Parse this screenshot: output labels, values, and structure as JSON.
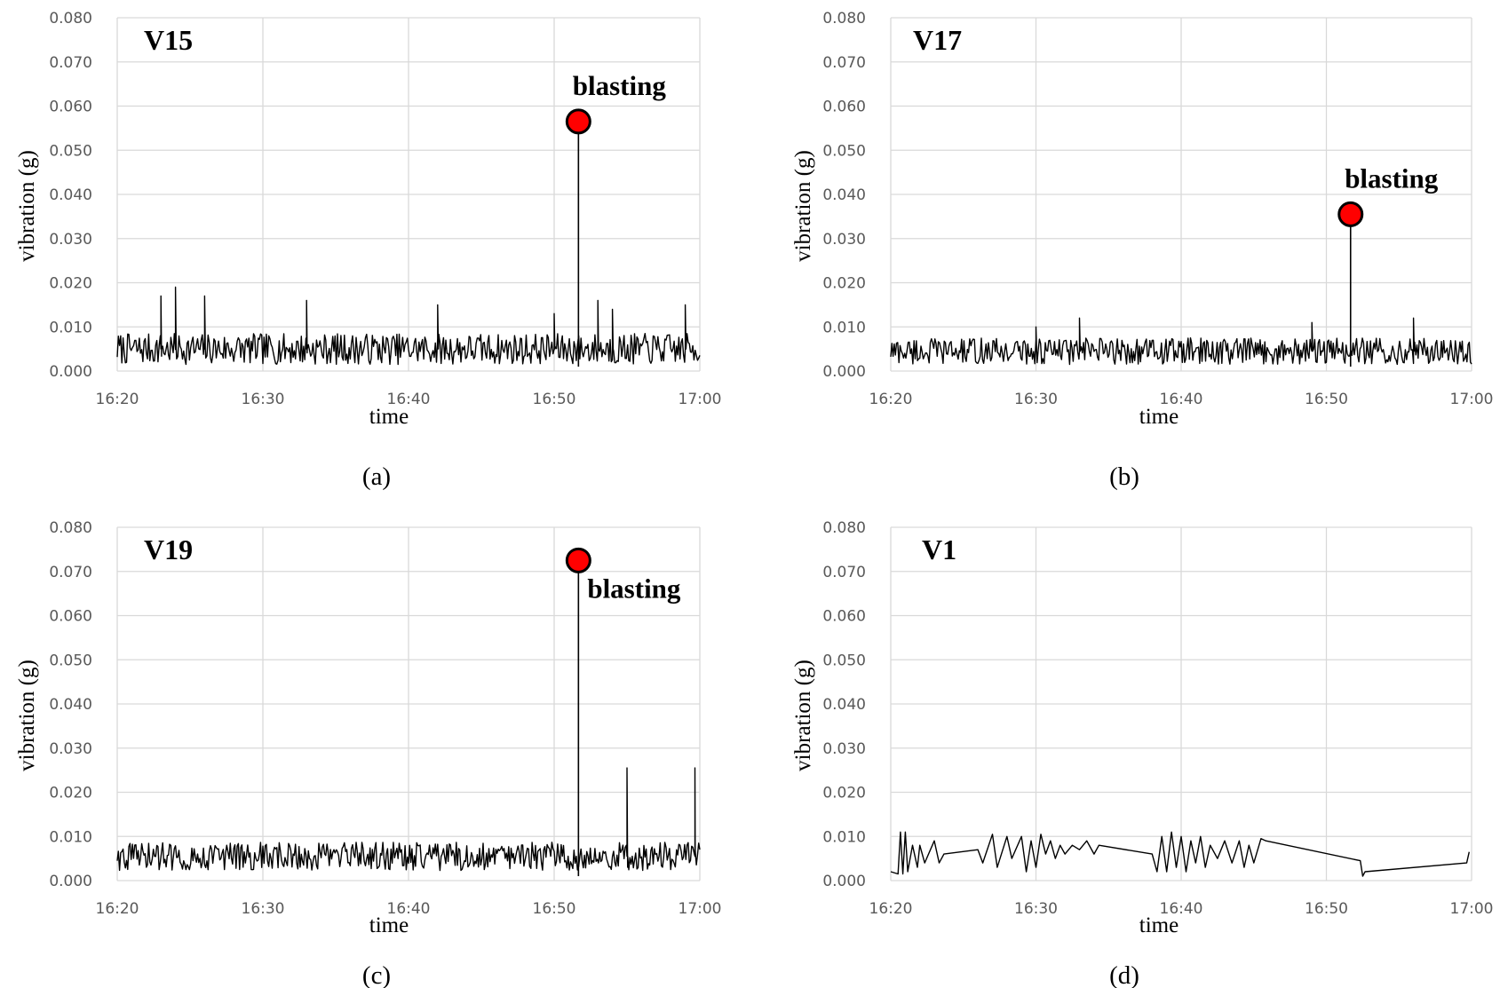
{
  "chart_data": [
    {
      "panel": "a",
      "type": "line",
      "title": "V15",
      "caption": "(a)",
      "xlabel": "time",
      "ylabel": "vibration (g)",
      "x_ticks": [
        "16:20",
        "16:30",
        "16:40",
        "16:50",
        "17:00"
      ],
      "xlim": [
        "16:20",
        "17:00"
      ],
      "y_ticks": [
        "0.000",
        "0.010",
        "0.020",
        "0.030",
        "0.040",
        "0.050",
        "0.060",
        "0.070",
        "0.080"
      ],
      "ylim": [
        0,
        0.08
      ],
      "grid": true,
      "noise": {
        "baseline": 0.005,
        "amplitude": 0.0035,
        "samples": 500
      },
      "spikes": [
        {
          "time": "16:23",
          "value": 0.017
        },
        {
          "time": "16:24",
          "value": 0.019
        },
        {
          "time": "16:26",
          "value": 0.017
        },
        {
          "time": "16:33",
          "value": 0.016
        },
        {
          "time": "16:42",
          "value": 0.015
        },
        {
          "time": "16:50",
          "value": 0.013
        },
        {
          "time": "16:53",
          "value": 0.016
        },
        {
          "time": "16:54",
          "value": 0.014
        },
        {
          "time": "16:59",
          "value": 0.015
        }
      ],
      "series": [
        {
          "values": []
        }
      ],
      "annotation": {
        "label": "blasting",
        "time": "16:51:40",
        "value": 0.0565,
        "label_side": "top"
      }
    },
    {
      "panel": "b",
      "type": "line",
      "title": "V17",
      "caption": "(b)",
      "xlabel": "time",
      "ylabel": "vibration (g)",
      "x_ticks": [
        "16:20",
        "16:30",
        "16:40",
        "16:50",
        "17:00"
      ],
      "xlim": [
        "16:20",
        "17:00"
      ],
      "y_ticks": [
        "0.000",
        "0.010",
        "0.020",
        "0.030",
        "0.040",
        "0.050",
        "0.060",
        "0.070",
        "0.080"
      ],
      "ylim": [
        0,
        0.08
      ],
      "grid": true,
      "noise": {
        "baseline": 0.0045,
        "amplitude": 0.003,
        "samples": 500
      },
      "spikes": [
        {
          "time": "16:30",
          "value": 0.01
        },
        {
          "time": "16:33",
          "value": 0.012
        },
        {
          "time": "16:49",
          "value": 0.011
        },
        {
          "time": "16:56",
          "value": 0.012
        }
      ],
      "series": [
        {
          "values": []
        }
      ],
      "annotation": {
        "label": "blasting",
        "time": "16:51:40",
        "value": 0.0355,
        "label_side": "top"
      }
    },
    {
      "panel": "c",
      "type": "line",
      "title": "V19",
      "caption": "(c)",
      "xlabel": "time",
      "ylabel": "vibration (g)",
      "x_ticks": [
        "16:20",
        "16:30",
        "16:40",
        "16:50",
        "17:00"
      ],
      "xlim": [
        "16:20",
        "17:00"
      ],
      "y_ticks": [
        "0.000",
        "0.010",
        "0.020",
        "0.030",
        "0.040",
        "0.050",
        "0.060",
        "0.070",
        "0.080"
      ],
      "ylim": [
        0,
        0.08
      ],
      "grid": true,
      "noise": {
        "baseline": 0.0055,
        "amplitude": 0.0032,
        "samples": 500
      },
      "spikes": [
        {
          "time": "16:55",
          "value": 0.0255
        },
        {
          "time": "16:59:40",
          "value": 0.0255
        }
      ],
      "series": [
        {
          "values": []
        }
      ],
      "annotation": {
        "label": "blasting",
        "time": "16:51:40",
        "value": 0.0725,
        "label_side": "bottom-right"
      }
    },
    {
      "panel": "d",
      "type": "line",
      "title": "V1",
      "caption": "(d)",
      "xlabel": "time",
      "ylabel": "vibration (g)",
      "x_ticks": [
        "16:20",
        "16:30",
        "16:40",
        "16:50",
        "17:00"
      ],
      "xlim": [
        "16:20",
        "17:00"
      ],
      "y_ticks": [
        "0.000",
        "0.010",
        "0.020",
        "0.030",
        "0.040",
        "0.050",
        "0.060",
        "0.070",
        "0.080"
      ],
      "ylim": [
        0,
        0.08
      ],
      "grid": true,
      "series": [
        {
          "x": [
            "16:20:00",
            "16:20:30",
            "16:20:40",
            "16:20:50",
            "16:21:00",
            "16:21:10",
            "16:21:30",
            "16:21:50",
            "16:22:00",
            "16:22:20",
            "16:23:00",
            "16:23:20",
            "16:23:40",
            "16:26:00",
            "16:26:20",
            "16:27:00",
            "16:27:20",
            "16:28:00",
            "16:28:20",
            "16:29:00",
            "16:29:20",
            "16:29:40",
            "16:30:00",
            "16:30:20",
            "16:30:40",
            "16:31:00",
            "16:31:20",
            "16:31:40",
            "16:32:00",
            "16:32:30",
            "16:33:00",
            "16:33:30",
            "16:34:00",
            "16:34:20",
            "16:38:00",
            "16:38:20",
            "16:38:40",
            "16:39:00",
            "16:39:20",
            "16:39:40",
            "16:40:00",
            "16:40:20",
            "16:40:40",
            "16:41:00",
            "16:41:20",
            "16:41:40",
            "16:42:00",
            "16:42:30",
            "16:43:00",
            "16:43:30",
            "16:44:00",
            "16:44:20",
            "16:44:40",
            "16:45:00",
            "16:45:30",
            "16:45:50",
            "16:52:20",
            "16:52:30",
            "16:52:40",
            "16:59:40",
            "16:59:50"
          ],
          "values": [
            0.002,
            0.0015,
            0.011,
            0.0015,
            0.011,
            0.002,
            0.008,
            0.003,
            0.008,
            0.004,
            0.009,
            0.004,
            0.006,
            0.007,
            0.004,
            0.0105,
            0.003,
            0.01,
            0.005,
            0.01,
            0.002,
            0.009,
            0.003,
            0.0105,
            0.006,
            0.009,
            0.005,
            0.008,
            0.006,
            0.008,
            0.007,
            0.009,
            0.006,
            0.008,
            0.006,
            0.002,
            0.01,
            0.002,
            0.011,
            0.003,
            0.01,
            0.002,
            0.009,
            0.004,
            0.01,
            0.003,
            0.008,
            0.005,
            0.009,
            0.004,
            0.009,
            0.003,
            0.008,
            0.004,
            0.0095,
            0.009,
            0.0045,
            0.001,
            0.002,
            0.004,
            0.0065
          ]
        }
      ]
    }
  ]
}
